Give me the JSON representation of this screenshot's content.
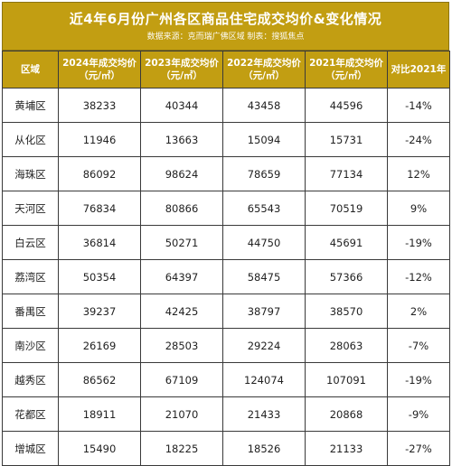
{
  "header": {
    "title": "近4年6月份广州各区商品住宅成交均价&变化情况",
    "source": "数据来源：克而瑞广佛区域    制表：搜狐焦点"
  },
  "table": {
    "columns": [
      {
        "line1": "区域",
        "line2": ""
      },
      {
        "line1": "2024年成交均价",
        "line2": "（元/㎡）"
      },
      {
        "line1": "2023年成交均价",
        "line2": "（元/㎡）"
      },
      {
        "line1": "2022年成交均价",
        "line2": "（元/㎡）"
      },
      {
        "line1": "2021年成交均价",
        "line2": "（元/㎡）"
      },
      {
        "line1": "对比2021年",
        "line2": ""
      }
    ],
    "rows": [
      [
        "黄埔区",
        "38233",
        "40344",
        "43458",
        "44596",
        "-14%"
      ],
      [
        "从化区",
        "11946",
        "13663",
        "15094",
        "15731",
        "-24%"
      ],
      [
        "海珠区",
        "86092",
        "98624",
        "78659",
        "77134",
        "12%"
      ],
      [
        "天河区",
        "76834",
        "80866",
        "65543",
        "70519",
        "9%"
      ],
      [
        "白云区",
        "36814",
        "50271",
        "44750",
        "45691",
        "-19%"
      ],
      [
        "荔湾区",
        "50354",
        "64397",
        "58475",
        "57366",
        "-12%"
      ],
      [
        "番禺区",
        "39237",
        "42425",
        "38797",
        "38570",
        "2%"
      ],
      [
        "南沙区",
        "26169",
        "28503",
        "29224",
        "28063",
        "-7%"
      ],
      [
        "越秀区",
        "86562",
        "67109",
        "124074",
        "107091",
        "-19%"
      ],
      [
        "花都区",
        "18911",
        "21070",
        "21433",
        "20868",
        "-9%"
      ],
      [
        "增城区",
        "15490",
        "18225",
        "18526",
        "21133",
        "-27%"
      ]
    ]
  }
}
